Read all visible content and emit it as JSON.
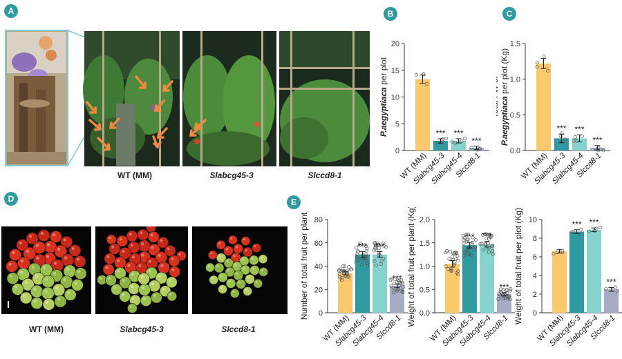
{
  "panels": {
    "A": {
      "badge": "A",
      "captions": [
        "WT (MM)",
        "Slabcg45-3",
        "Slccd8-1"
      ]
    },
    "B": {
      "badge": "B"
    },
    "C": {
      "badge": "C"
    },
    "D": {
      "badge": "D",
      "captions": [
        "WT (MM)",
        "Slabcg45-3",
        "Slccd8-1"
      ]
    },
    "E": {
      "badge": "E"
    }
  },
  "colors": {
    "wt": "#f9c96b",
    "slabcg45_3": "#2f9aa0",
    "slabcg45_4": "#86d2cd",
    "slccd8_1": "#a6acc4",
    "badge": "#2f9aa0",
    "arrow": "#f08a3e"
  },
  "chart_data": [
    {
      "id": "B",
      "type": "bar",
      "categories": [
        "WT (MM)",
        "Slabcg45-3",
        "Slabcg45-4",
        "Slccd8-1"
      ],
      "values": [
        13.3,
        1.8,
        1.8,
        0.5
      ],
      "errors": [
        0.8,
        0.4,
        0.4,
        0.3
      ],
      "significance": [
        "",
        "***",
        "***",
        "***"
      ],
      "ylabel": "Total number of P.aegyptiaca per plot",
      "ylim": [
        0,
        20
      ],
      "yticks": [
        "0",
        "5",
        "10",
        "15",
        "20"
      ]
    },
    {
      "id": "C",
      "type": "bar",
      "categories": [
        "WT (MM)",
        "Slabcg45-3",
        "Slabcg45-4",
        "Slccd8-1"
      ],
      "values": [
        1.22,
        0.17,
        0.17,
        0.04
      ],
      "errors": [
        0.07,
        0.06,
        0.05,
        0.03
      ],
      "significance": [
        "",
        "***",
        "***",
        "***"
      ],
      "ylabel": "Total FW of P.aegyptiaca per plot (Kg)",
      "ylim": [
        0,
        1.5
      ],
      "yticks": [
        "0.0",
        "0.5",
        "1.0",
        "1.5"
      ]
    },
    {
      "id": "E1",
      "type": "bar",
      "categories": [
        "WT (MM)",
        "Slabcg45-3",
        "Slabcg45-4",
        "Slccd8-1"
      ],
      "values": [
        34,
        50,
        50,
        23
      ],
      "errors": [
        1.5,
        2.5,
        2.5,
        1.5
      ],
      "significance": [
        "",
        "***",
        "***",
        "***"
      ],
      "ylabel": "Number of total fruit per plant",
      "ylim": [
        0,
        80
      ],
      "yticks": [
        "0",
        "20",
        "40",
        "60",
        "80"
      ]
    },
    {
      "id": "E2",
      "type": "bar",
      "categories": [
        "WT (MM)",
        "Slabcg45-3",
        "Slabcg45-4",
        "Slccd8-1"
      ],
      "values": [
        1.05,
        1.45,
        1.47,
        0.4
      ],
      "errors": [
        0.07,
        0.06,
        0.06,
        0.03
      ],
      "significance": [
        "",
        "***",
        "***",
        "***"
      ],
      "ylabel": "Weight of total fruit per plant (Kg)",
      "ylim": [
        0,
        2.0
      ],
      "yticks": [
        "0.0",
        "0.5",
        "1.0",
        "1.5",
        "2.0"
      ]
    },
    {
      "id": "E3",
      "type": "bar",
      "categories": [
        "WT (MM)",
        "Slabcg45-3",
        "Slabcg45-4",
        "Slccd8-1"
      ],
      "values": [
        6.6,
        8.7,
        8.9,
        2.5
      ],
      "errors": [
        0.2,
        0.2,
        0.2,
        0.2
      ],
      "significance": [
        "",
        "***",
        "***",
        "***"
      ],
      "ylabel": "Weight of total fruit per plot (Kg)",
      "ylim": [
        0,
        10
      ],
      "yticks": [
        "0",
        "2",
        "4",
        "6",
        "8",
        "10"
      ]
    }
  ]
}
